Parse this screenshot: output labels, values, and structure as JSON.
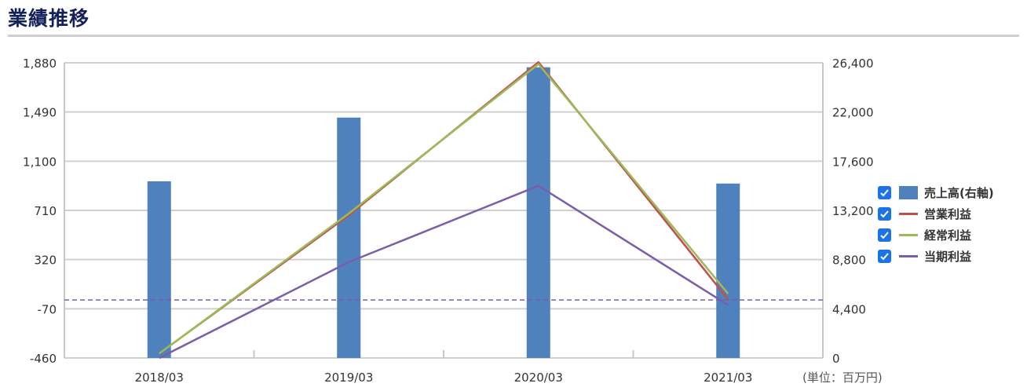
{
  "page": {
    "title": "業績推移",
    "unit_note": "(単位：百万円)"
  },
  "legend": [
    {
      "label": "売上高(右軸)",
      "kind": "bar",
      "color": "#4f81bd",
      "checked": true
    },
    {
      "label": "営業利益",
      "kind": "line",
      "color": "#c0504d",
      "checked": true
    },
    {
      "label": "経常利益",
      "kind": "line",
      "color": "#9bbb59",
      "checked": true
    },
    {
      "label": "当期利益",
      "kind": "line",
      "color": "#7b5ea7",
      "checked": true
    }
  ],
  "chart_data": {
    "type": "bar",
    "categories": [
      "2018/03",
      "2019/03",
      "2020/03",
      "2021/03"
    ],
    "left_axis": {
      "ylim": [
        -460,
        1880
      ],
      "ticks": [
        "1,880",
        "1,490",
        "1,100",
        "710",
        "320",
        "-70",
        "-460"
      ],
      "tick_values": [
        1880,
        1490,
        1100,
        710,
        320,
        -70,
        -460
      ]
    },
    "right_axis": {
      "ylim": [
        0,
        26400
      ],
      "ticks": [
        "26,400",
        "22,000",
        "17,600",
        "13,200",
        "8,800",
        "4,400",
        "0"
      ],
      "tick_values": [
        26400,
        22000,
        17600,
        13200,
        8800,
        4400,
        0
      ]
    },
    "series": [
      {
        "name": "売上高(右軸)",
        "type": "bar",
        "axis": "right",
        "color": "#4f81bd",
        "values": [
          15800,
          21500,
          26000,
          15600
        ]
      },
      {
        "name": "営業利益",
        "type": "line",
        "axis": "left",
        "color": "#c0504d",
        "values": [
          -425,
          672,
          1885,
          5
        ]
      },
      {
        "name": "経常利益",
        "type": "line",
        "axis": "left",
        "color": "#9bbb59",
        "values": [
          -425,
          685,
          1870,
          50
        ]
      },
      {
        "name": "当期利益",
        "type": "line",
        "axis": "left",
        "color": "#7b5ea7",
        "values": [
          -460,
          300,
          905,
          -40
        ]
      }
    ],
    "reference_line": {
      "axis": "left",
      "value": 0,
      "color": "#7b5ea7",
      "style": "dashed"
    },
    "grid": true
  }
}
